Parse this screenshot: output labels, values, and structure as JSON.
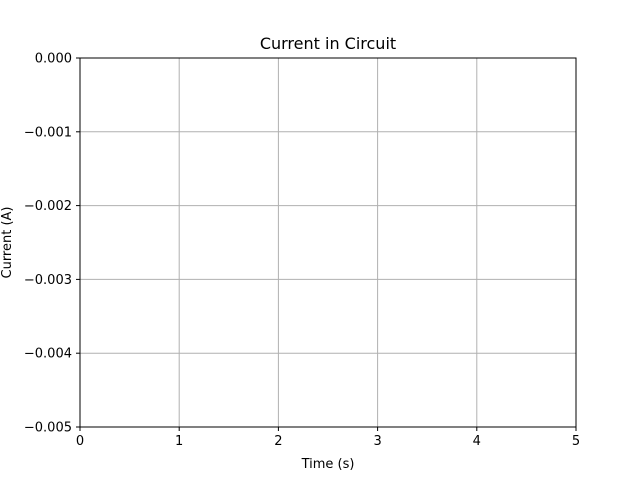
{
  "chart_data": {
    "type": "line",
    "title": "Current in Circuit",
    "xlabel": "Time (s)",
    "ylabel": "Current (A)",
    "xlim": [
      0,
      5
    ],
    "ylim": [
      -0.005,
      0.0
    ],
    "x_ticks": [
      0,
      1,
      2,
      3,
      4,
      5
    ],
    "x_tick_labels": [
      "0",
      "1",
      "2",
      "3",
      "4",
      "5"
    ],
    "y_ticks": [
      0.0,
      -0.001,
      -0.002,
      -0.003,
      -0.004,
      -0.005
    ],
    "y_tick_labels": [
      "0.000",
      "−0.001",
      "−0.002",
      "−0.003",
      "−0.004",
      "−0.005"
    ],
    "grid": true,
    "legend": "none",
    "series": [],
    "colors": {
      "axes": "#000000",
      "grid": "#b0b0b0",
      "background": "#ffffff"
    }
  }
}
